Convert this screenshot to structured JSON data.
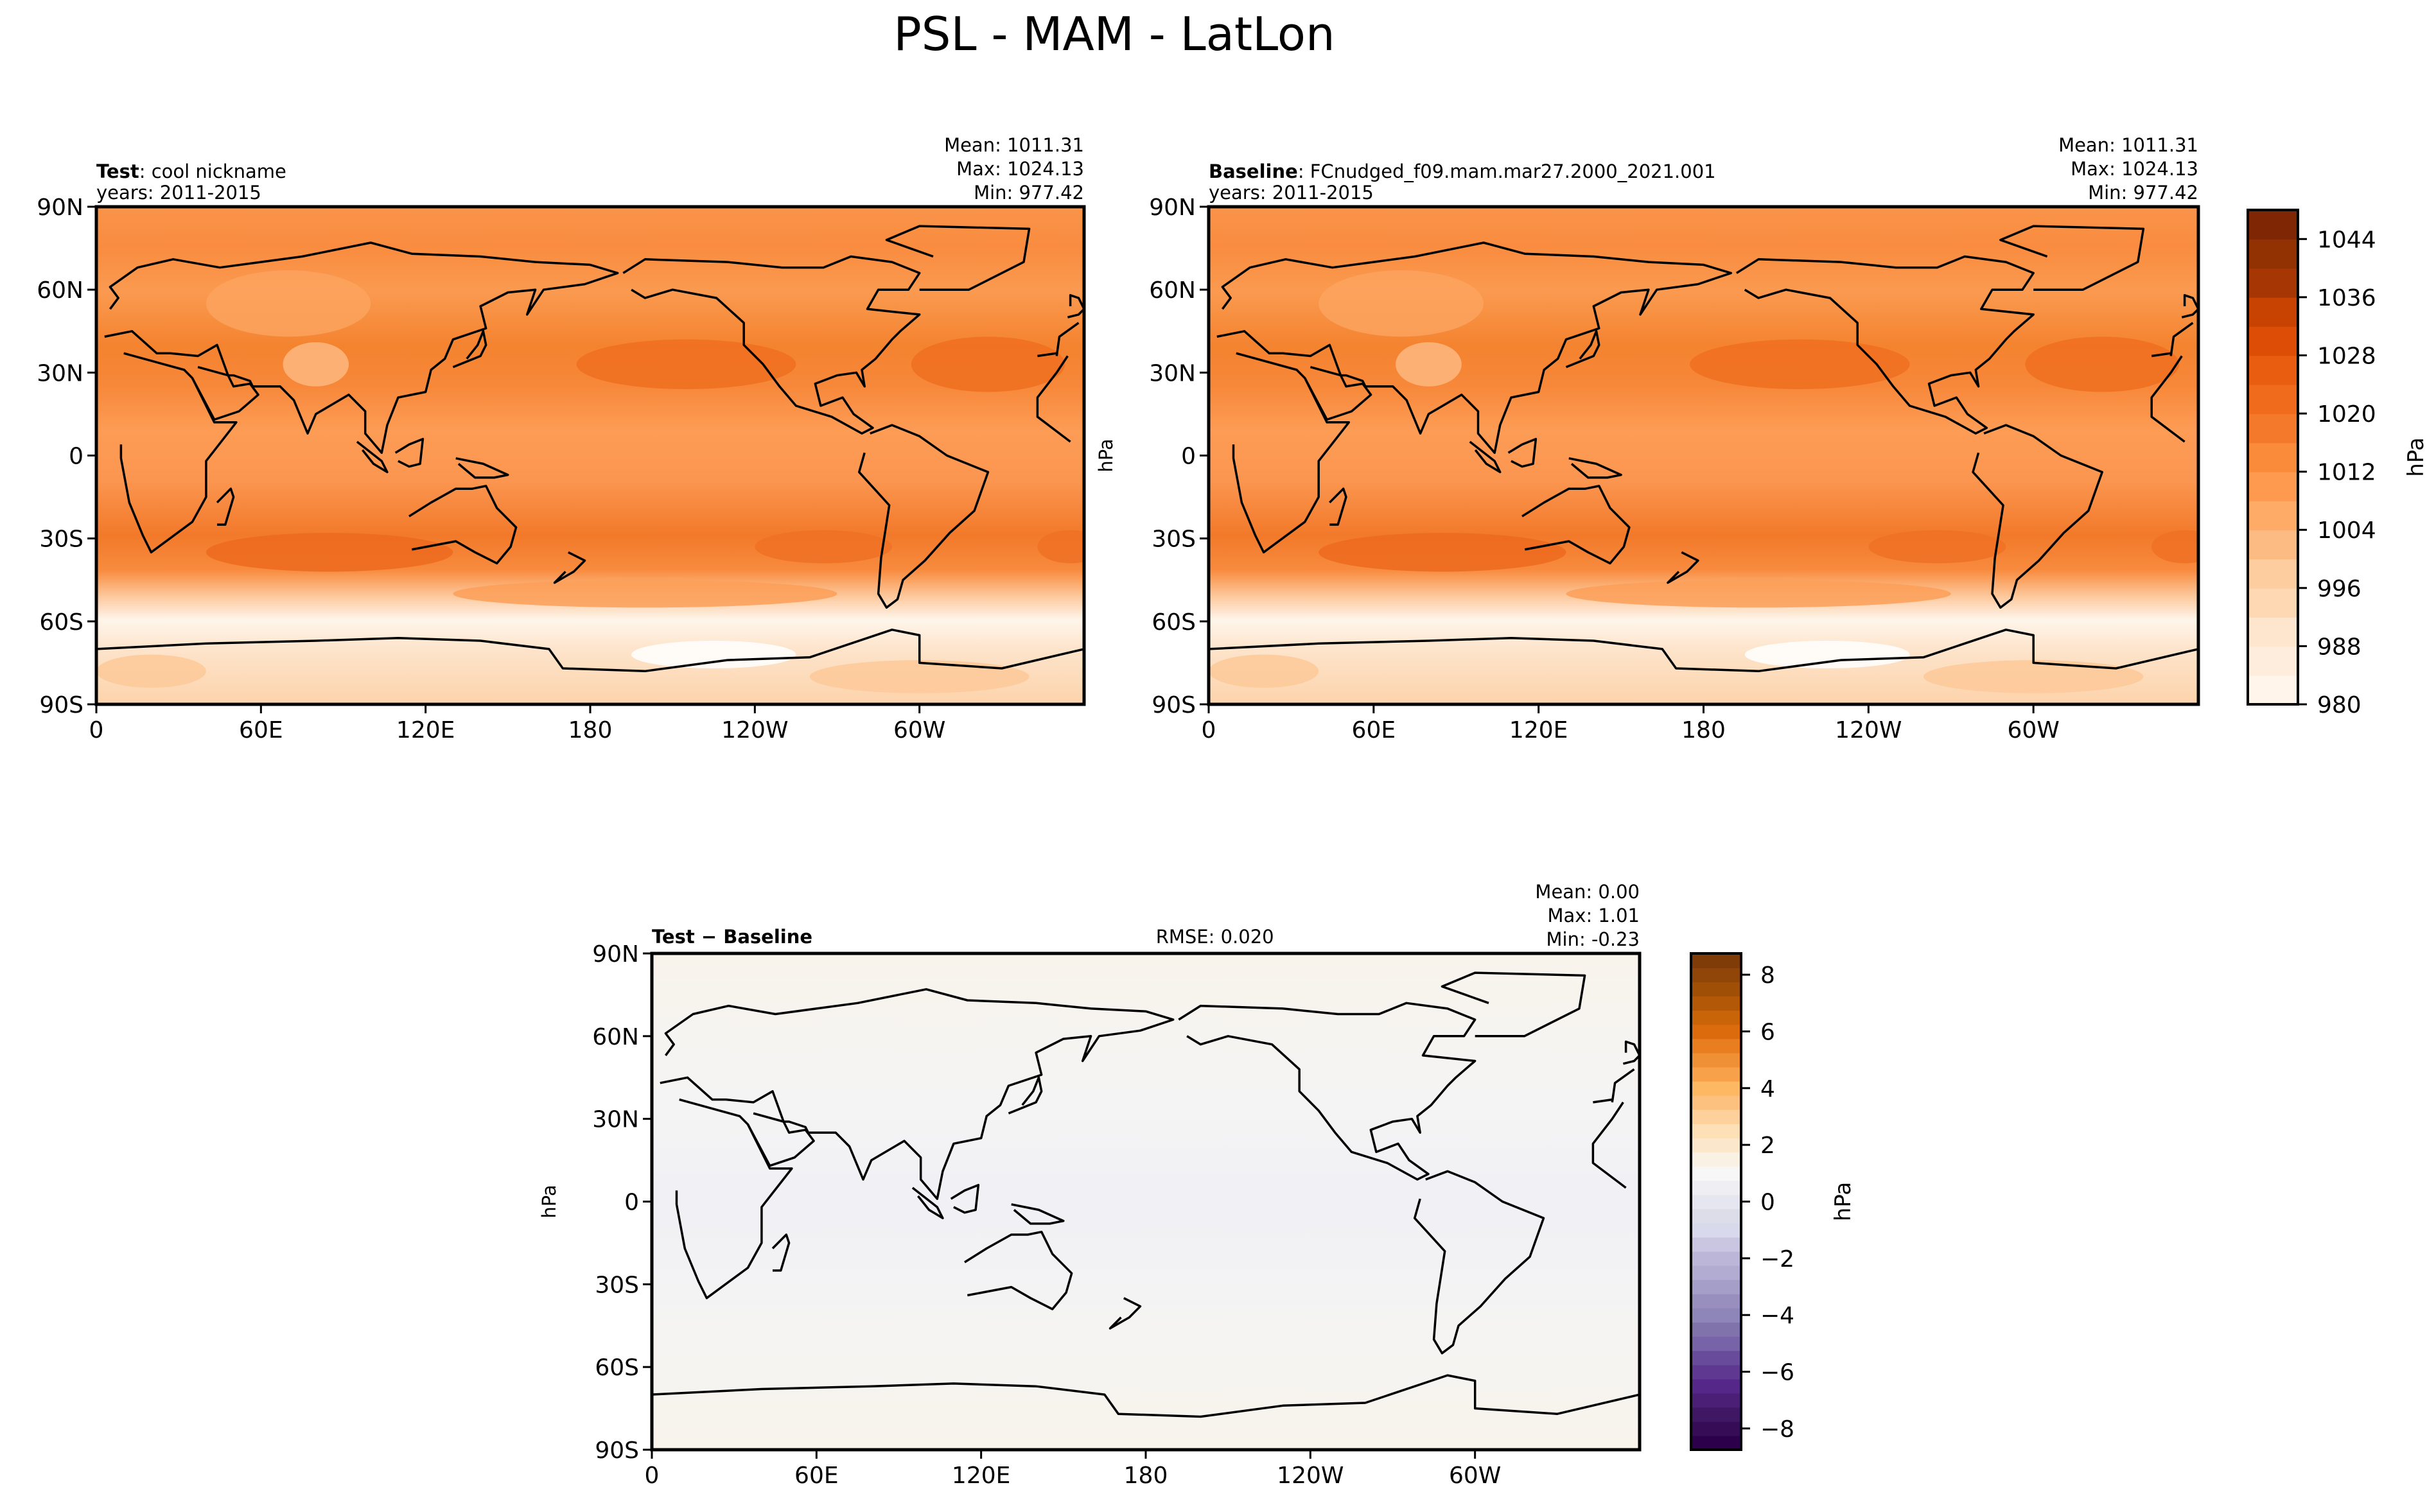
{
  "chart_data": [
    {
      "type": "heatmap",
      "title": "PSL - MAM - LatLon",
      "panels": [
        {
          "id": "test",
          "label_bold": "Test",
          "label_rest": ": cool nickname",
          "years": "years: 2011-2015",
          "stats": [
            "Mean: 1011.31",
            "Max: 1024.13",
            "Min: 977.42"
          ],
          "ylabel": "",
          "field": "psl"
        },
        {
          "id": "baseline",
          "label_bold": "Baseline",
          "label_rest": ": FCnudged_f09.mam.mar27.2000_2021.001",
          "years": "years: 2011-2015",
          "stats": [
            "Mean: 1011.31",
            "Max: 1024.13",
            "Min: 977.42"
          ],
          "ylabel": "hPa",
          "field": "psl"
        },
        {
          "id": "diff",
          "label_bold": "Test − Baseline",
          "label_rest": "",
          "rmse": "RMSE: 0.020",
          "stats": [
            "Mean:  0.00",
            "Max:  1.01",
            "Min: -0.23"
          ],
          "ylabel": "hPa",
          "field": "diff"
        }
      ],
      "xticks": [
        "0",
        "60E",
        "120E",
        "180",
        "120W",
        "60W"
      ],
      "xtick_lons": [
        0,
        60,
        120,
        180,
        240,
        300
      ],
      "yticks": [
        "90N",
        "60N",
        "30N",
        "0",
        "30S",
        "60S",
        "90S"
      ],
      "ytick_lats": [
        90,
        60,
        30,
        0,
        -30,
        -60,
        -90
      ],
      "colorbars": [
        {
          "label": "hPa",
          "range": [
            980,
            1048
          ],
          "ticks": [
            "1044",
            "1036",
            "1028",
            "1020",
            "1012",
            "1004",
            "996",
            "988",
            "980"
          ],
          "tick_values": [
            1044,
            1036,
            1028,
            1020,
            1012,
            1004,
            996,
            988,
            980
          ],
          "colors": [
            "#fff5eb",
            "#feeddc",
            "#fee6ce",
            "#fdd8b3",
            "#fdcd9f",
            "#fdbb84",
            "#fdab67",
            "#fd9a4f",
            "#f98b3a",
            "#f4792a",
            "#f06b1c",
            "#e85d10",
            "#de4d05",
            "#c84202",
            "#a63603",
            "#923102",
            "#7f2704"
          ]
        },
        {
          "label": "hPa",
          "range": [
            -8.75,
            8.75
          ],
          "ticks": [
            "8",
            "6",
            "4",
            "2",
            "0",
            "−2",
            "−4",
            "−6",
            "−8"
          ],
          "tick_values": [
            8,
            6,
            4,
            2,
            0,
            -2,
            -4,
            -6,
            -8
          ],
          "colors": [
            "#2d004b",
            "#360c57",
            "#3f1863",
            "#4a1f75",
            "#542788",
            "#5e3891",
            "#684b9a",
            "#7763a7",
            "#8073ac",
            "#8e86b8",
            "#998fbf",
            "#a49ec8",
            "#b2abd2",
            "#bcb6d8",
            "#cac5e0",
            "#d8daeb",
            "#dddde9",
            "#e6e6f0",
            "#eeeef3",
            "#f7f7f7",
            "#f8f1e4",
            "#fbe7cc",
            "#fde0b6",
            "#fdd09c",
            "#fdc17f",
            "#fdb863",
            "#f8a14b",
            "#ef9035",
            "#e87e1f",
            "#db6b0d",
            "#c96408",
            "#b35806",
            "#a04f07",
            "#8f4608",
            "#7f3b08"
          ]
        }
      ]
    }
  ]
}
